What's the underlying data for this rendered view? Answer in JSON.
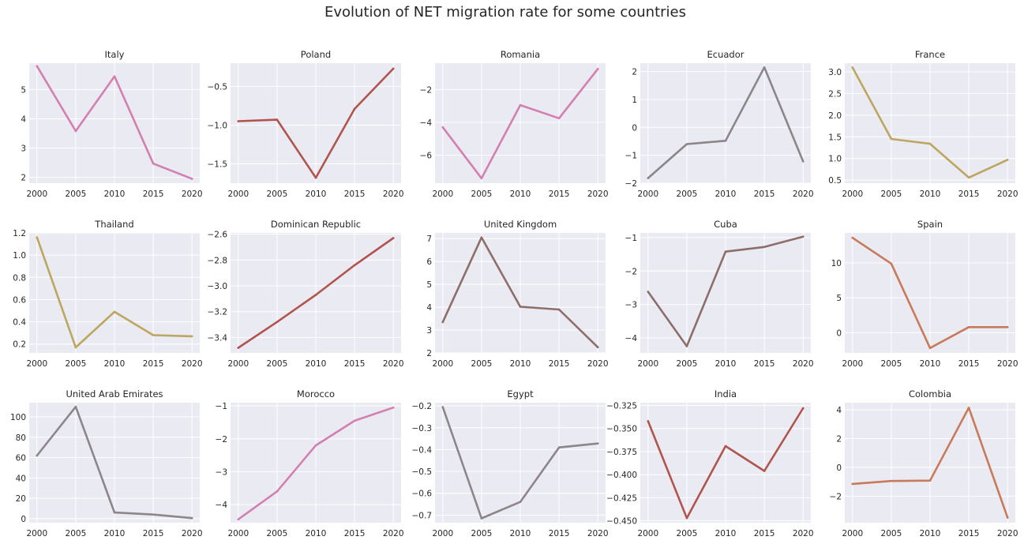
{
  "title": "Evolution of NET migration rate for some countries",
  "chart_data": {
    "type": "line",
    "x": [
      2000,
      2005,
      2010,
      2015,
      2020
    ],
    "panels": [
      {
        "country": "Italy",
        "values": [
          5.8,
          3.58,
          5.45,
          2.47,
          1.95
        ],
        "ylim": [
          1.8,
          5.9
        ],
        "yticks": [
          "2",
          "3",
          "4",
          "5"
        ],
        "ytick_values": [
          2,
          3,
          4,
          5
        ],
        "color": "#d47fb1"
      },
      {
        "country": "Poland",
        "values": [
          -0.95,
          -0.93,
          -1.68,
          -0.79,
          -0.27
        ],
        "ylim": [
          -1.75,
          -0.2
        ],
        "yticks": [
          "−1.5",
          "−1.0",
          "−0.5"
        ],
        "ytick_values": [
          -1.5,
          -1.0,
          -0.5
        ],
        "color": "#b2544e"
      },
      {
        "country": "Romania",
        "values": [
          -4.3,
          -7.4,
          -2.95,
          -3.75,
          -0.75
        ],
        "ylim": [
          -7.7,
          -0.4
        ],
        "yticks": [
          "−6",
          "−4",
          "−2"
        ],
        "ytick_values": [
          -6,
          -4,
          -2
        ],
        "color": "#d47fb1"
      },
      {
        "country": "Ecuador",
        "values": [
          -1.82,
          -0.6,
          -0.48,
          2.15,
          -1.22
        ],
        "ylim": [
          -2.0,
          2.3
        ],
        "yticks": [
          "−2",
          "−1",
          "0",
          "1",
          "2"
        ],
        "ytick_values": [
          -2,
          -1,
          0,
          1,
          2
        ],
        "color": "#8c8589"
      },
      {
        "country": "France",
        "values": [
          3.1,
          1.45,
          1.34,
          0.56,
          0.97
        ],
        "ylim": [
          0.43,
          3.2
        ],
        "yticks": [
          "0.5",
          "1.0",
          "1.5",
          "2.0",
          "2.5",
          "3.0"
        ],
        "ytick_values": [
          0.5,
          1.0,
          1.5,
          2.0,
          2.5,
          3.0
        ],
        "color": "#bca660"
      },
      {
        "country": "Thailand",
        "values": [
          1.16,
          0.17,
          0.49,
          0.28,
          0.27
        ],
        "ylim": [
          0.12,
          1.2
        ],
        "yticks": [
          "0.2",
          "0.4",
          "0.6",
          "0.8",
          "1.0",
          "1.2"
        ],
        "ytick_values": [
          0.2,
          0.4,
          0.6,
          0.8,
          1.0,
          1.2
        ],
        "color": "#bca660"
      },
      {
        "country": "Dominican Republic",
        "values": [
          -3.48,
          -3.28,
          -3.07,
          -2.84,
          -2.63
        ],
        "ylim": [
          -3.52,
          -2.59
        ],
        "yticks": [
          "−3.4",
          "−3.2",
          "−3.0",
          "−2.8",
          "−2.6"
        ],
        "ytick_values": [
          -3.4,
          -3.2,
          -3.0,
          -2.8,
          -2.6
        ],
        "color": "#b2544e"
      },
      {
        "country": "United Kingdom",
        "values": [
          3.35,
          7.05,
          4.02,
          3.9,
          2.25
        ],
        "ylim": [
          2.0,
          7.25
        ],
        "yticks": [
          "2",
          "3",
          "4",
          "5",
          "6",
          "7"
        ],
        "ytick_values": [
          2,
          3,
          4,
          5,
          6,
          7
        ],
        "color": "#8d6e68"
      },
      {
        "country": "Cuba",
        "values": [
          -2.62,
          -4.25,
          -1.42,
          -1.28,
          -0.97
        ],
        "ylim": [
          -4.45,
          -0.86
        ],
        "yticks": [
          "−4",
          "−3",
          "−2",
          "−1"
        ],
        "ytick_values": [
          -4,
          -3,
          -2,
          -1
        ],
        "color": "#8d6e68"
      },
      {
        "country": "Spain",
        "values": [
          13.6,
          9.9,
          -2.2,
          0.8,
          0.8
        ],
        "ylim": [
          -2.9,
          14.3
        ],
        "yticks": [
          "0",
          "5",
          "10"
        ],
        "ytick_values": [
          0,
          5,
          10
        ],
        "color": "#c87a5a"
      },
      {
        "country": "United Arab Emirates",
        "values": [
          62,
          110,
          6,
          4,
          0.5
        ],
        "ylim": [
          -4,
          114
        ],
        "yticks": [
          "0",
          "20",
          "40",
          "60",
          "80",
          "100"
        ],
        "ytick_values": [
          0,
          20,
          40,
          60,
          80,
          100
        ],
        "color": "#8c8589"
      },
      {
        "country": "Morocco",
        "values": [
          -4.45,
          -3.6,
          -2.2,
          -1.45,
          -1.05
        ],
        "ylim": [
          -4.55,
          -0.9
        ],
        "yticks": [
          "−4",
          "−3",
          "−2",
          "−1"
        ],
        "ytick_values": [
          -4,
          -3,
          -2,
          -1
        ],
        "color": "#d47fb1"
      },
      {
        "country": "Egypt",
        "values": [
          -0.205,
          -0.715,
          -0.64,
          -0.39,
          -0.372
        ],
        "ylim": [
          -0.735,
          -0.185
        ],
        "yticks": [
          "−0.7",
          "−0.6",
          "−0.5",
          "−0.4",
          "−0.3",
          "−0.2"
        ],
        "ytick_values": [
          -0.7,
          -0.6,
          -0.5,
          -0.4,
          -0.3,
          -0.2
        ],
        "color": "#8c8589"
      },
      {
        "country": "India",
        "values": [
          -0.342,
          -0.447,
          -0.369,
          -0.396,
          -0.328
        ],
        "ylim": [
          -0.452,
          -0.322
        ],
        "yticks": [
          "−0.450",
          "−0.425",
          "−0.400",
          "−0.375",
          "−0.350",
          "−0.325"
        ],
        "ytick_values": [
          -0.45,
          -0.425,
          -0.4,
          -0.375,
          -0.35,
          -0.325
        ],
        "color": "#b2544e"
      },
      {
        "country": "Colombia",
        "values": [
          -1.15,
          -0.95,
          -0.92,
          4.15,
          -3.5
        ],
        "ylim": [
          -3.85,
          4.5
        ],
        "yticks": [
          "−2",
          "0",
          "2",
          "4"
        ],
        "ytick_values": [
          -2,
          0,
          2,
          4
        ],
        "color": "#c87a5a"
      }
    ]
  }
}
